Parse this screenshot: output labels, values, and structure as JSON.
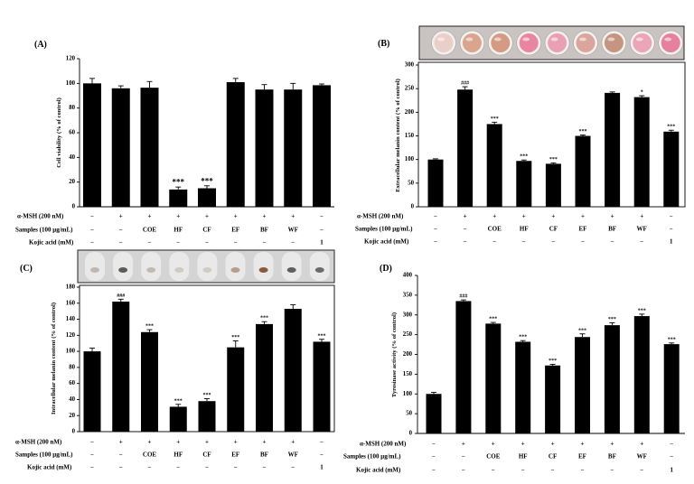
{
  "figure_images": {
    "melanin_wells_B": [
      "#e9cfc7",
      "#d9a58c",
      "#d49a83",
      "#e8859f",
      "#e9a0b5",
      "#d9a59c",
      "#c59580",
      "#eba4b8",
      "#e5809f"
    ],
    "cell_pellets_C": [
      "#bdb8b3",
      "#5d5b58",
      "#c2bab2",
      "#d0cac4",
      "#d2ccc6",
      "#b59f8c",
      "#8a5b3b",
      "#5f5e5c",
      "#6d6b69"
    ]
  },
  "chart_data": [
    {
      "panel_label": "(A)",
      "type": "bar",
      "ylabel": "Cell viability (% of control)",
      "ylim": [
        0,
        120
      ],
      "yticks": [
        0,
        20,
        40,
        60,
        80,
        100,
        120
      ],
      "grid": false,
      "bar_color": "#000000",
      "values": [
        100,
        96,
        96.5,
        14,
        15,
        101,
        95,
        95,
        98.5
      ],
      "error_bars": [
        4,
        2,
        5,
        2,
        2,
        3,
        4,
        5,
        1
      ],
      "significance": [
        "",
        "",
        "",
        "***",
        "***",
        "",
        "",
        "",
        ""
      ],
      "conditions": [
        {
          "label": "α-MSH (200 nM)",
          "values": [
            "−",
            "+",
            "+",
            "+",
            "+",
            "+",
            "+",
            "+",
            "−"
          ]
        },
        {
          "label": "Samples (100 μg/mL)",
          "values": [
            "−",
            "−",
            "COE",
            "HF",
            "CF",
            "EF",
            "BF",
            "WF",
            "−"
          ]
        },
        {
          "label": "Kojic acid (mM)",
          "values": [
            "−",
            "−",
            "−",
            "−",
            "−",
            "−",
            "−",
            "−",
            "1"
          ]
        }
      ]
    },
    {
      "panel_label": "(B)",
      "type": "bar",
      "ylabel": "Extracellular melanin content (% of control)",
      "ylim": [
        0,
        300
      ],
      "yticks": [
        0,
        50,
        100,
        150,
        200,
        250,
        300
      ],
      "grid": false,
      "bar_color": "#000000",
      "values": [
        100,
        248,
        175,
        97,
        91,
        150,
        241,
        232,
        159
      ],
      "error_bars": [
        1.5,
        6,
        4,
        2,
        2,
        2,
        2,
        3,
        3
      ],
      "significance": [
        "",
        "###",
        "***",
        "***",
        "***",
        "***",
        "",
        "*",
        "***"
      ],
      "conditions": [
        {
          "label": "α-MSH (200 nM)",
          "values": [
            "−",
            "+",
            "+",
            "+",
            "+",
            "+",
            "+",
            "+",
            "−"
          ]
        },
        {
          "label": "Samples (100 μg/mL)",
          "values": [
            "−",
            "−",
            "COE",
            "HF",
            "CF",
            "EF",
            "BF",
            "WF",
            "−"
          ]
        },
        {
          "label": "Kojic acid (mM)",
          "values": [
            "−",
            "−",
            "−",
            "−",
            "−",
            "−",
            "−",
            "−",
            "1"
          ]
        }
      ]
    },
    {
      "panel_label": "(C)",
      "type": "bar",
      "ylabel": "Intracellular melanin content (% of control)",
      "ylim": [
        0,
        180
      ],
      "yticks": [
        0,
        20,
        40,
        60,
        80,
        100,
        120,
        140,
        160,
        180
      ],
      "grid": false,
      "bar_color": "#000000",
      "values": [
        100,
        162,
        124,
        31,
        38,
        105,
        134,
        153,
        112
      ],
      "error_bars": [
        4,
        3,
        3,
        3,
        3,
        8,
        3,
        5,
        3
      ],
      "significance": [
        "",
        "###",
        "***",
        "***",
        "***",
        "***",
        "***",
        "",
        "***"
      ],
      "conditions": [
        {
          "label": "α-MSH (200 nM)",
          "values": [
            "−",
            "+",
            "+",
            "+",
            "+",
            "+",
            "+",
            "+",
            "−"
          ]
        },
        {
          "label": "Samples (100 μg/mL)",
          "values": [
            "−",
            "−",
            "COE",
            "HF",
            "CF",
            "EF",
            "BF",
            "WF",
            "−"
          ]
        },
        {
          "label": "Kojic acid (mM)",
          "values": [
            "−",
            "−",
            "−",
            "−",
            "−",
            "−",
            "−",
            "−",
            "1"
          ]
        }
      ]
    },
    {
      "panel_label": "(D)",
      "type": "bar",
      "ylabel": "Tyrosinase activity (% of control)",
      "ylim": [
        0,
        400
      ],
      "yticks": [
        0,
        50,
        100,
        150,
        200,
        250,
        300,
        350,
        400
      ],
      "grid": false,
      "bar_color": "#000000",
      "values": [
        100,
        335,
        278,
        232,
        172,
        244,
        274,
        297,
        226
      ],
      "error_bars": [
        4,
        3,
        3,
        3,
        3,
        8,
        6,
        5,
        3
      ],
      "significance": [
        "",
        "###",
        "***",
        "***",
        "***",
        "***",
        "***",
        "***",
        "***"
      ],
      "conditions": [
        {
          "label": "α-MSH (200 nM)",
          "values": [
            "−",
            "+",
            "+",
            "+",
            "+",
            "+",
            "+",
            "+",
            "−"
          ]
        },
        {
          "label": "Samples (100 μg/mL)",
          "values": [
            "−",
            "−",
            "COE",
            "HF",
            "CF",
            "EF",
            "BF",
            "WF",
            "−"
          ]
        },
        {
          "label": "Kojic acid (mM)",
          "values": [
            "−",
            "−",
            "−",
            "−",
            "−",
            "−",
            "−",
            "−",
            "1"
          ]
        }
      ]
    }
  ]
}
